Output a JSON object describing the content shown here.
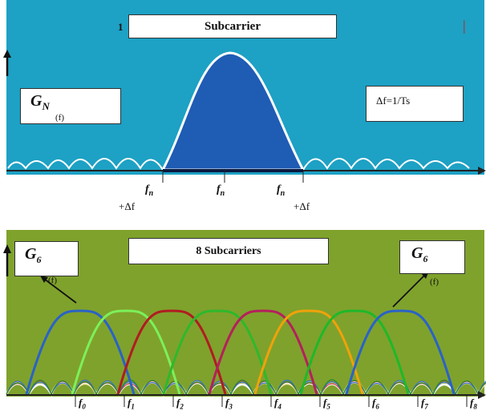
{
  "top": {
    "index_label": "1",
    "title": "Subcarrier",
    "red_mark": "|",
    "gn": {
      "letter": "G",
      "subscript": "N",
      "arg": "(f)"
    },
    "spacing_note": "Δf=1/Ts",
    "axis_labels": [
      {
        "name": "f",
        "sub": "n",
        "offset": "+Δf"
      },
      {
        "name": "f",
        "sub": "n",
        "offset": ""
      },
      {
        "name": "f",
        "sub": "n",
        "offset": "+Δf"
      }
    ],
    "colors": {
      "background": "#1da1c4",
      "main_lobe": "#1f5cb4",
      "curve": "#ffffff"
    }
  },
  "bottom": {
    "title": "8 Subcarriers",
    "g_left": {
      "letter": "G",
      "subscript": "6",
      "arg": "(f)"
    },
    "g_right": {
      "letter": "G",
      "subscript": "6",
      "arg": "(f)"
    },
    "subcarrier_labels": [
      {
        "name": "f",
        "sub": "0"
      },
      {
        "name": "f",
        "sub": "1"
      },
      {
        "name": "f",
        "sub": "2"
      },
      {
        "name": "f",
        "sub": "3"
      },
      {
        "name": "f",
        "sub": "4"
      },
      {
        "name": "f",
        "sub": "5"
      },
      {
        "name": "f",
        "sub": "6"
      },
      {
        "name": "f",
        "sub": "7"
      },
      {
        "name": "f",
        "sub": "8"
      }
    ],
    "lobe_colors": [
      "#2a62c8",
      "#7cf05a",
      "#b01c22",
      "#2fb82c",
      "#b4205c",
      "#f0a20a",
      "#1fb82a",
      "#2a62c8"
    ],
    "colors": {
      "background": "#7fa22c"
    }
  }
}
